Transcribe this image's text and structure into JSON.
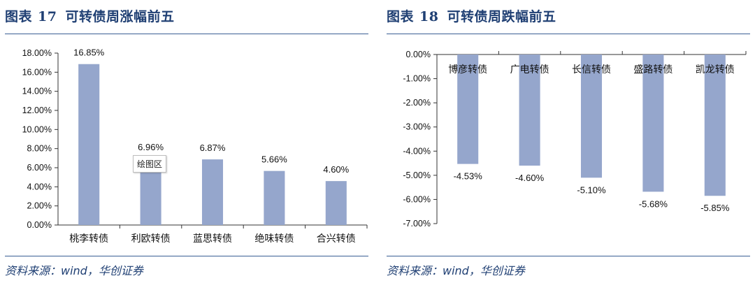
{
  "colors": {
    "bar": "#95a6cc",
    "title": "#1f3f73",
    "rule": "#3a5f94",
    "axis": "#333333"
  },
  "left": {
    "label": "图表",
    "number": "17",
    "title": "可转债周涨幅前五",
    "source": "资料来源：wind，华创证券",
    "tooltip": "绘图区"
  },
  "right": {
    "label": "图表",
    "number": "18",
    "title": "可转债周跌幅前五",
    "source": "资料来源：wind，华创证券"
  },
  "chart_data": [
    {
      "type": "bar",
      "title": "可转债周涨幅前五",
      "categories": [
        "桃李转债",
        "利欧转债",
        "蓝思转债",
        "绝味转债",
        "合兴转债"
      ],
      "values": [
        16.85,
        6.96,
        6.87,
        5.66,
        4.6
      ],
      "data_labels": [
        "16.85%",
        "6.96%",
        "6.87%",
        "5.66%",
        "4.60%"
      ],
      "ylim": [
        0,
        18
      ],
      "yticks": [
        0,
        2,
        4,
        6,
        8,
        10,
        12,
        14,
        16,
        18
      ],
      "ytick_labels": [
        "0.00%",
        "2.00%",
        "4.00%",
        "6.00%",
        "8.00%",
        "10.00%",
        "12.00%",
        "14.00%",
        "16.00%",
        "18.00%"
      ],
      "category_labels_position": "bottom",
      "grid": false
    },
    {
      "type": "bar",
      "title": "可转债周跌幅前五",
      "categories": [
        "博彦转债",
        "广电转债",
        "长信转债",
        "盛路转债",
        "凯龙转债"
      ],
      "values": [
        -4.53,
        -4.6,
        -5.1,
        -5.68,
        -5.85
      ],
      "data_labels": [
        "-4.53%",
        "-4.60%",
        "-5.10%",
        "-5.68%",
        "-5.85%"
      ],
      "ylim": [
        -7,
        0
      ],
      "yticks": [
        0,
        -1,
        -2,
        -3,
        -4,
        -5,
        -6,
        -7
      ],
      "ytick_labels": [
        "0.00%",
        "-1.00%",
        "-2.00%",
        "-3.00%",
        "-4.00%",
        "-5.00%",
        "-6.00%",
        "-7.00%"
      ],
      "category_labels_position": "top",
      "grid": false
    }
  ]
}
